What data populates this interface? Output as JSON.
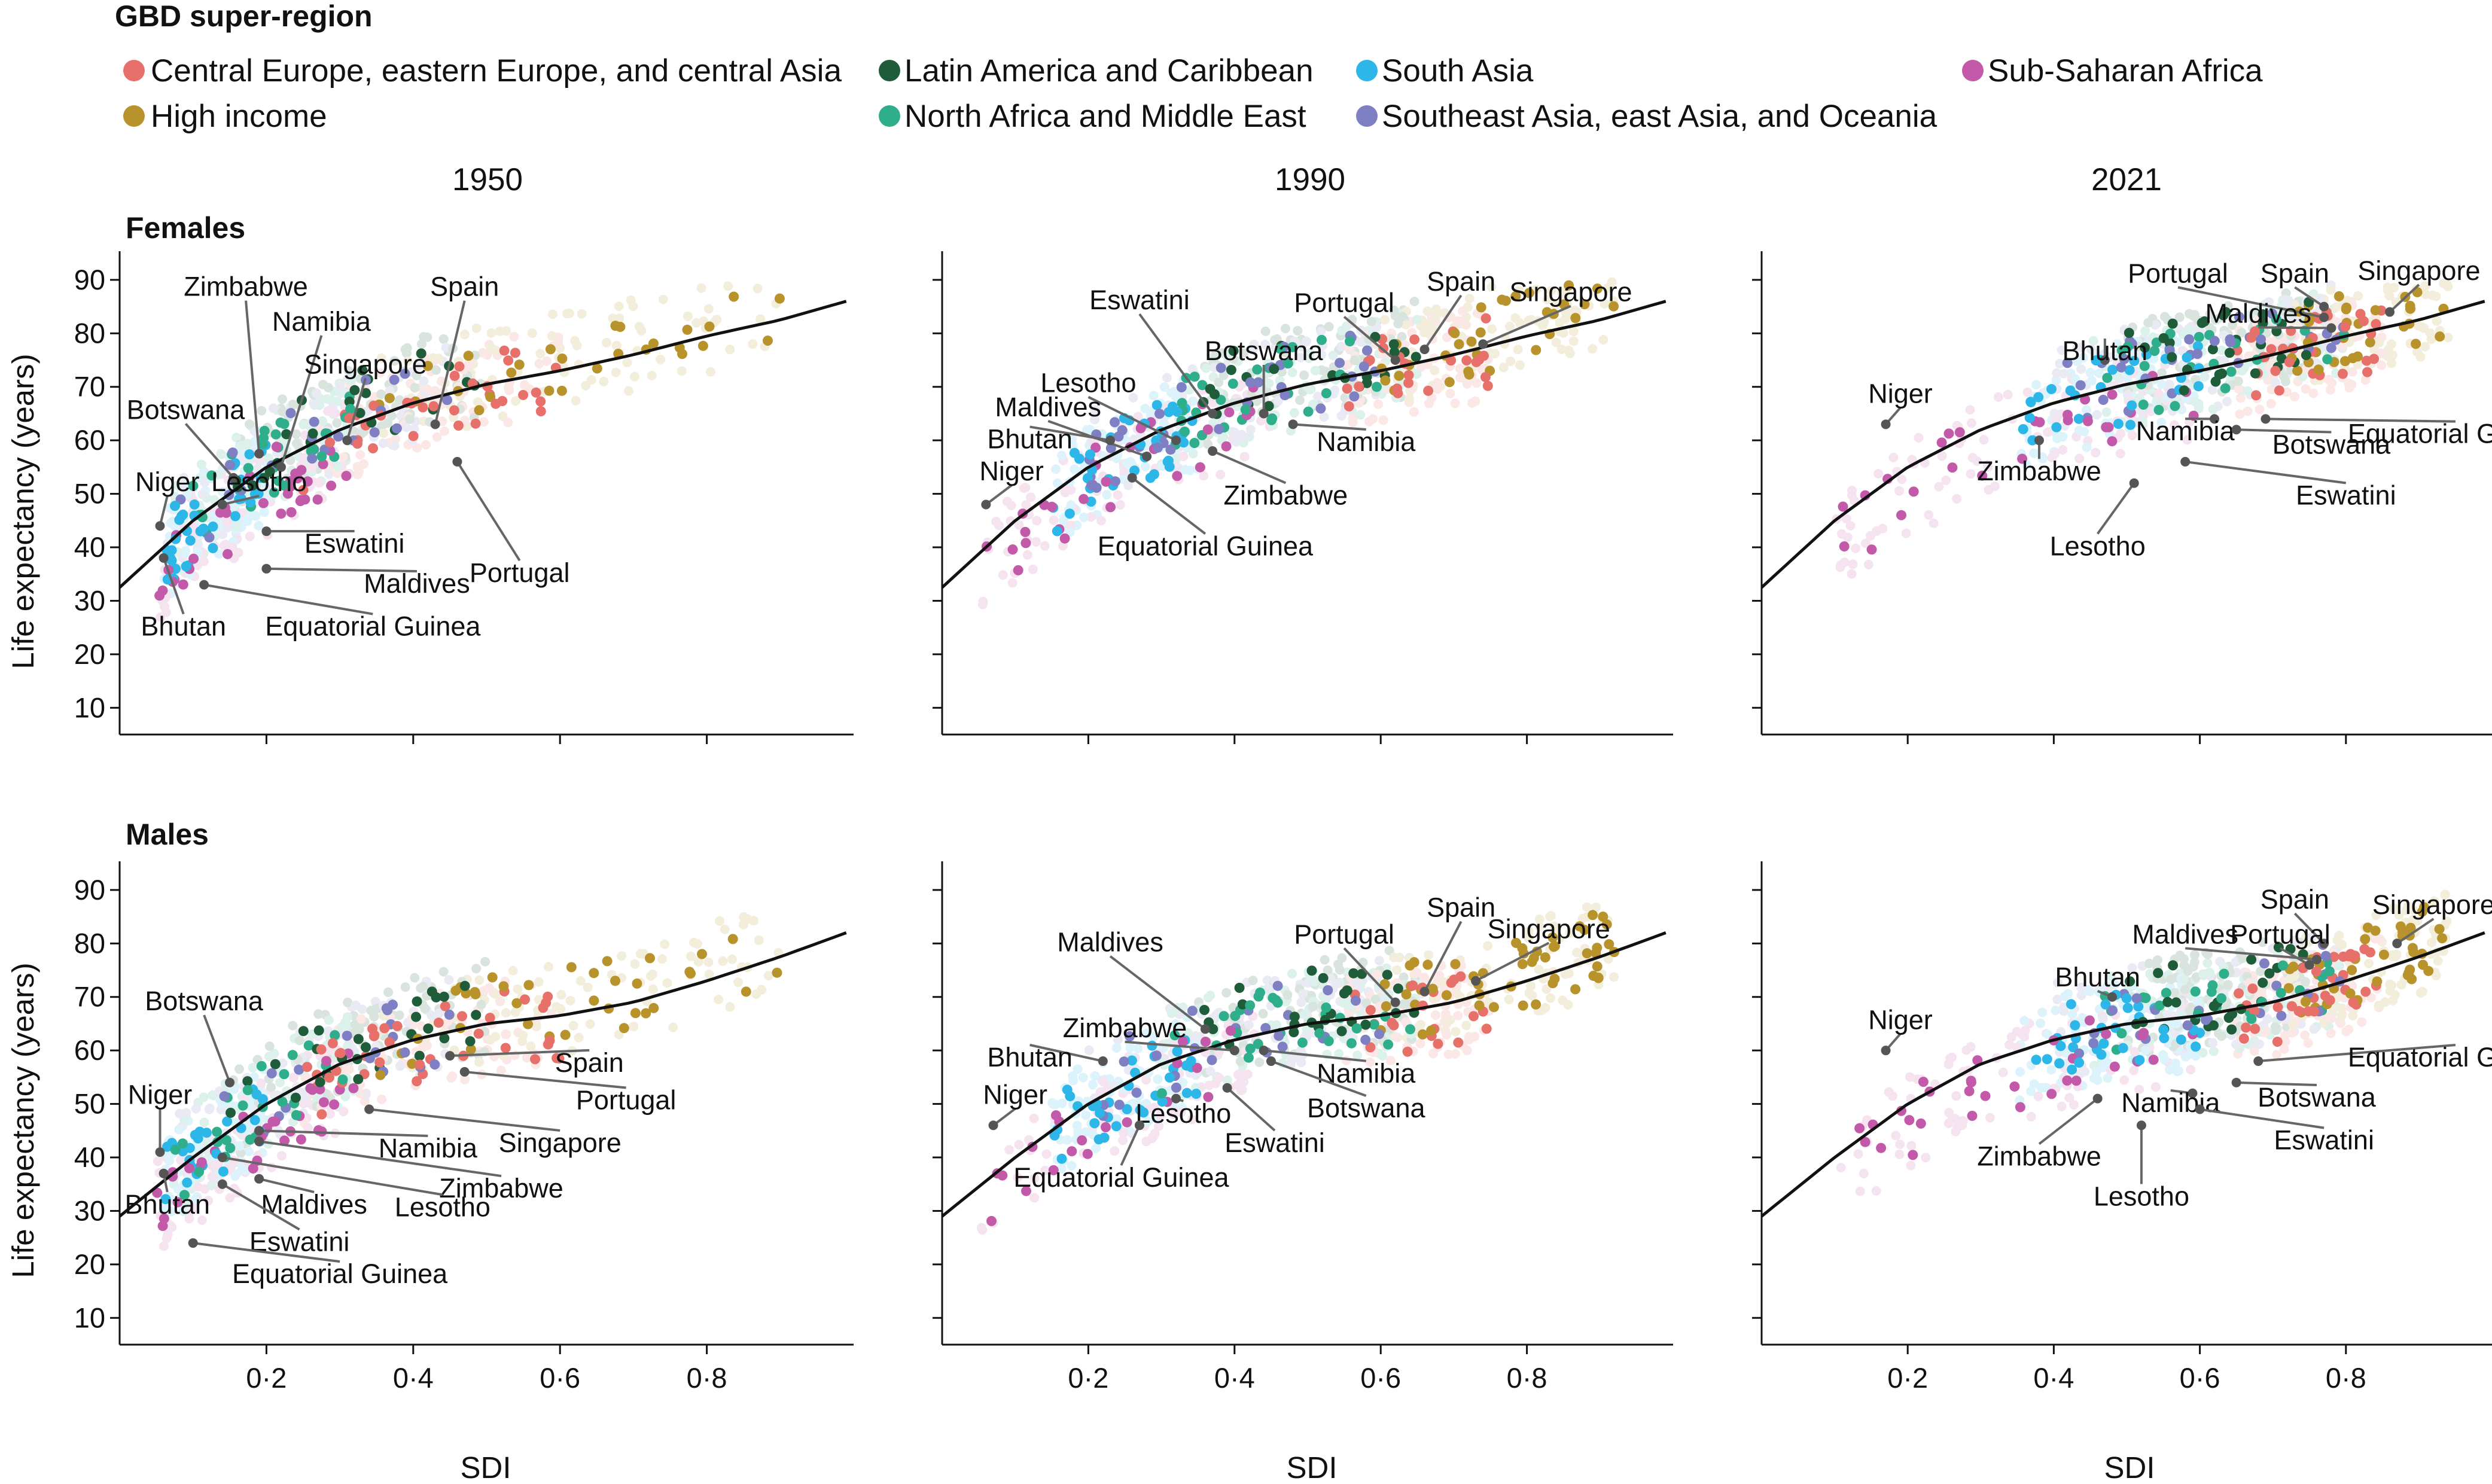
{
  "legend": {
    "title": "GBD super-region",
    "entries": [
      {
        "key": "ceeca",
        "label": "Central Europe, eastern Europe, and central Asia",
        "color": "#e8706a"
      },
      {
        "key": "lac",
        "label": "Latin America and Caribbean",
        "color": "#1f5c3a"
      },
      {
        "key": "sa",
        "label": "South Asia",
        "color": "#2db7e8"
      },
      {
        "key": "ssa",
        "label": "Sub-Saharan Africa",
        "color": "#c35aa9"
      },
      {
        "key": "hi",
        "label": "High income",
        "color": "#b8922a"
      },
      {
        "key": "name",
        "label": "North Africa and Middle East",
        "color": "#2fae8c"
      },
      {
        "key": "seao",
        "label": "Southeast Asia, east Asia, and Oceania",
        "color": "#7f7fc4"
      }
    ]
  },
  "years": [
    "1950",
    "1990",
    "2021"
  ],
  "rows": [
    "Females",
    "Males"
  ],
  "axes": {
    "ylabel": "Life expectancy (years)",
    "xlabel": "SDI"
  },
  "chart_data": {
    "type": "scatter",
    "xlim": [
      0,
      1
    ],
    "ylim": [
      5,
      92
    ],
    "x_ticks": [
      0.2,
      0.4,
      0.6,
      0.8
    ],
    "x_tick_labels": [
      "0·2",
      "0·4",
      "0·6",
      "0·8"
    ],
    "y_ticks": [
      10,
      20,
      30,
      40,
      50,
      60,
      70,
      80,
      90
    ],
    "panels": [
      {
        "id": "f1950",
        "sex": "Females",
        "year": "1950",
        "curve": [
          [
            0,
            32.5
          ],
          [
            0.1,
            45
          ],
          [
            0.2,
            55
          ],
          [
            0.3,
            62
          ],
          [
            0.4,
            67
          ],
          [
            0.5,
            70.5
          ],
          [
            0.6,
            73
          ],
          [
            0.7,
            76
          ],
          [
            0.8,
            79.5
          ],
          [
            0.9,
            82.5
          ],
          [
            0.99,
            86
          ]
        ],
        "labels": [
          {
            "text": "Zimbabwe",
            "x": 0.19,
            "y": 57.5,
            "tx": 0.172,
            "ty": 87
          },
          {
            "text": "Namibia",
            "x": 0.22,
            "y": 55,
            "tx": 0.275,
            "ty": 80.5
          },
          {
            "text": "Singapore",
            "x": 0.31,
            "y": 60,
            "tx": 0.335,
            "ty": 72.5
          },
          {
            "text": "Spain",
            "x": 0.43,
            "y": 63,
            "tx": 0.47,
            "ty": 87
          },
          {
            "text": "Botswana",
            "x": 0.155,
            "y": 53,
            "tx": 0.09,
            "ty": 64
          },
          {
            "text": "Niger",
            "x": 0.055,
            "y": 44,
            "tx": 0.065,
            "ty": 50.5
          },
          {
            "text": "Lesotho",
            "x": 0.14,
            "y": 48,
            "tx": 0.19,
            "ty": 50.5
          },
          {
            "text": "Portugal",
            "x": 0.46,
            "y": 56,
            "tx": 0.545,
            "ty": 33.5
          },
          {
            "text": "Eswatini",
            "x": 0.2,
            "y": 43,
            "tx": 0.32,
            "ty": 39
          },
          {
            "text": "Maldives",
            "x": 0.2,
            "y": 36,
            "tx": 0.405,
            "ty": 31.5
          },
          {
            "text": "Equatorial Guinea",
            "x": 0.115,
            "y": 33,
            "tx": 0.345,
            "ty": 23.5
          },
          {
            "text": "Bhutan",
            "x": 0.06,
            "y": 38,
            "tx": 0.087,
            "ty": 23.5
          }
        ]
      },
      {
        "id": "f1990",
        "sex": "Females",
        "year": "1990",
        "curve": [
          [
            0,
            32.5
          ],
          [
            0.1,
            45
          ],
          [
            0.2,
            55
          ],
          [
            0.3,
            62
          ],
          [
            0.4,
            67
          ],
          [
            0.5,
            70.5
          ],
          [
            0.6,
            73
          ],
          [
            0.7,
            76
          ],
          [
            0.8,
            79.5
          ],
          [
            0.9,
            82.5
          ],
          [
            0.99,
            86
          ]
        ],
        "labels": [
          {
            "text": "Eswatini",
            "x": 0.37,
            "y": 65,
            "tx": 0.27,
            "ty": 84.5
          },
          {
            "text": "Portugal",
            "x": 0.62,
            "y": 75,
            "tx": 0.55,
            "ty": 84
          },
          {
            "text": "Spain",
            "x": 0.66,
            "y": 77,
            "tx": 0.71,
            "ty": 88
          },
          {
            "text": "Singapore",
            "x": 0.74,
            "y": 78,
            "tx": 0.86,
            "ty": 86
          },
          {
            "text": "Botswana",
            "x": 0.44,
            "y": 65,
            "tx": 0.44,
            "ty": 75
          },
          {
            "text": "Lesotho",
            "x": 0.32,
            "y": 60,
            "tx": 0.2,
            "ty": 69
          },
          {
            "text": "Maldives",
            "x": 0.28,
            "y": 57,
            "tx": 0.145,
            "ty": 64.5
          },
          {
            "text": "Bhutan",
            "x": 0.23,
            "y": 60,
            "tx": 0.12,
            "ty": 58.5
          },
          {
            "text": "Niger",
            "x": 0.06,
            "y": 48,
            "tx": 0.095,
            "ty": 52.5
          },
          {
            "text": "Namibia",
            "x": 0.48,
            "y": 63,
            "tx": 0.58,
            "ty": 58
          },
          {
            "text": "Zimbabwe",
            "x": 0.37,
            "y": 58,
            "tx": 0.47,
            "ty": 48
          },
          {
            "text": "Equatorial Guinea",
            "x": 0.26,
            "y": 53,
            "tx": 0.36,
            "ty": 38.5
          }
        ]
      },
      {
        "id": "f2021",
        "sex": "Females",
        "year": "2021",
        "curve": [
          [
            0,
            32.5
          ],
          [
            0.1,
            45
          ],
          [
            0.2,
            55
          ],
          [
            0.3,
            62
          ],
          [
            0.4,
            67
          ],
          [
            0.5,
            70.5
          ],
          [
            0.6,
            73
          ],
          [
            0.7,
            76
          ],
          [
            0.8,
            79.5
          ],
          [
            0.9,
            82.5
          ],
          [
            0.99,
            86
          ]
        ],
        "labels": [
          {
            "text": "Portugal",
            "x": 0.77,
            "y": 83,
            "tx": 0.57,
            "ty": 89.5
          },
          {
            "text": "Spain",
            "x": 0.77,
            "y": 85,
            "tx": 0.73,
            "ty": 89.5
          },
          {
            "text": "Singapore",
            "x": 0.86,
            "y": 84,
            "tx": 0.9,
            "ty": 90
          },
          {
            "text": "Maldives",
            "x": 0.78,
            "y": 81,
            "tx": 0.68,
            "ty": 82
          },
          {
            "text": "Bhutan",
            "x": 0.47,
            "y": 75,
            "tx": 0.47,
            "ty": 75
          },
          {
            "text": "Niger",
            "x": 0.17,
            "y": 63,
            "tx": 0.19,
            "ty": 67
          },
          {
            "text": "Namibia",
            "x": 0.62,
            "y": 64,
            "tx": 0.58,
            "ty": 60
          },
          {
            "text": "Equatorial Guinea",
            "x": 0.69,
            "y": 64,
            "tx": 0.95,
            "ty": 59.5
          },
          {
            "text": "Botswana",
            "x": 0.65,
            "y": 62,
            "tx": 0.78,
            "ty": 57.5
          },
          {
            "text": "Zimbabwe",
            "x": 0.38,
            "y": 60,
            "tx": 0.38,
            "ty": 52.5
          },
          {
            "text": "Eswatini",
            "x": 0.58,
            "y": 56,
            "tx": 0.8,
            "ty": 48
          },
          {
            "text": "Lesotho",
            "x": 0.51,
            "y": 52,
            "tx": 0.46,
            "ty": 38.5
          }
        ]
      },
      {
        "id": "m1950",
        "sex": "Males",
        "year": "1950",
        "curve": [
          [
            0,
            29
          ],
          [
            0.1,
            40
          ],
          [
            0.2,
            50
          ],
          [
            0.3,
            57.5
          ],
          [
            0.4,
            62
          ],
          [
            0.5,
            65
          ],
          [
            0.6,
            66.5
          ],
          [
            0.7,
            69
          ],
          [
            0.8,
            73
          ],
          [
            0.9,
            77.5
          ],
          [
            0.99,
            82
          ]
        ],
        "labels": [
          {
            "text": "Botswana",
            "x": 0.15,
            "y": 54,
            "tx": 0.115,
            "ty": 67.5
          },
          {
            "text": "Niger",
            "x": 0.055,
            "y": 41,
            "tx": 0.055,
            "ty": 50
          },
          {
            "text": "Spain",
            "x": 0.45,
            "y": 59,
            "tx": 0.64,
            "ty": 56
          },
          {
            "text": "Portugal",
            "x": 0.47,
            "y": 56,
            "tx": 0.69,
            "ty": 49
          },
          {
            "text": "Singapore",
            "x": 0.34,
            "y": 49,
            "tx": 0.6,
            "ty": 41
          },
          {
            "text": "Namibia",
            "x": 0.19,
            "y": 45,
            "tx": 0.42,
            "ty": 40
          },
          {
            "text": "Zimbabwe",
            "x": 0.19,
            "y": 43,
            "tx": 0.52,
            "ty": 32.5
          },
          {
            "text": "Maldives",
            "x": 0.19,
            "y": 36,
            "tx": 0.265,
            "ty": 29.5
          },
          {
            "text": "Lesotho",
            "x": 0.14,
            "y": 40,
            "tx": 0.44,
            "ty": 29
          },
          {
            "text": "Bhutan",
            "x": 0.06,
            "y": 37,
            "tx": 0.065,
            "ty": 29.5
          },
          {
            "text": "Eswatini",
            "x": 0.14,
            "y": 35,
            "tx": 0.245,
            "ty": 22.5
          },
          {
            "text": "Equatorial Guinea",
            "x": 0.1,
            "y": 24,
            "tx": 0.3,
            "ty": 16.5
          }
        ]
      },
      {
        "id": "m1990",
        "sex": "Males",
        "year": "1990",
        "curve": [
          [
            0,
            29
          ],
          [
            0.1,
            40
          ],
          [
            0.2,
            50
          ],
          [
            0.3,
            57.5
          ],
          [
            0.4,
            62
          ],
          [
            0.5,
            65
          ],
          [
            0.6,
            66.5
          ],
          [
            0.7,
            69
          ],
          [
            0.8,
            73
          ],
          [
            0.9,
            77.5
          ],
          [
            0.99,
            82
          ]
        ],
        "labels": [
          {
            "text": "Maldives",
            "x": 0.36,
            "y": 64,
            "tx": 0.23,
            "ty": 78.5
          },
          {
            "text": "Portugal",
            "x": 0.62,
            "y": 69,
            "tx": 0.55,
            "ty": 80
          },
          {
            "text": "Spain",
            "x": 0.66,
            "y": 71,
            "tx": 0.71,
            "ty": 85
          },
          {
            "text": "Singapore",
            "x": 0.73,
            "y": 73,
            "tx": 0.83,
            "ty": 81
          },
          {
            "text": "Zimbabwe",
            "x": 0.4,
            "y": 60,
            "tx": 0.25,
            "ty": 62.5
          },
          {
            "text": "Bhutan",
            "x": 0.22,
            "y": 58,
            "tx": 0.12,
            "ty": 57
          },
          {
            "text": "Niger",
            "x": 0.07,
            "y": 46,
            "tx": 0.1,
            "ty": 50
          },
          {
            "text": "Namibia",
            "x": 0.44,
            "y": 60,
            "tx": 0.58,
            "ty": 54
          },
          {
            "text": "Botswana",
            "x": 0.45,
            "y": 58,
            "tx": 0.58,
            "ty": 47.5
          },
          {
            "text": "Lesotho",
            "x": 0.32,
            "y": 51,
            "tx": 0.33,
            "ty": 46.5
          },
          {
            "text": "Eswatini",
            "x": 0.39,
            "y": 53,
            "tx": 0.455,
            "ty": 41
          },
          {
            "text": "Equatorial Guinea",
            "x": 0.27,
            "y": 46,
            "tx": 0.245,
            "ty": 34.5
          }
        ]
      },
      {
        "id": "m2021",
        "sex": "Males",
        "year": "2021",
        "curve": [
          [
            0,
            29
          ],
          [
            0.1,
            40
          ],
          [
            0.2,
            50
          ],
          [
            0.3,
            57.5
          ],
          [
            0.4,
            62
          ],
          [
            0.5,
            65
          ],
          [
            0.6,
            66.5
          ],
          [
            0.7,
            69
          ],
          [
            0.8,
            73
          ],
          [
            0.9,
            77.5
          ],
          [
            0.99,
            82
          ]
        ],
        "labels": [
          {
            "text": "Spain",
            "x": 0.77,
            "y": 80,
            "tx": 0.73,
            "ty": 86.5
          },
          {
            "text": "Singapore",
            "x": 0.87,
            "y": 80,
            "tx": 0.92,
            "ty": 85.5
          },
          {
            "text": "Maldives",
            "x": 0.76,
            "y": 77,
            "tx": 0.58,
            "ty": 80
          },
          {
            "text": "Portugal",
            "x": 0.75,
            "y": 76,
            "tx": 0.71,
            "ty": 80
          },
          {
            "text": "Bhutan",
            "x": 0.48,
            "y": 70,
            "tx": 0.46,
            "ty": 72
          },
          {
            "text": "Niger",
            "x": 0.17,
            "y": 60,
            "tx": 0.19,
            "ty": 64
          },
          {
            "text": "Equatorial Guinea",
            "x": 0.68,
            "y": 58,
            "tx": 0.95,
            "ty": 57
          },
          {
            "text": "Botswana",
            "x": 0.65,
            "y": 54,
            "tx": 0.76,
            "ty": 49.5
          },
          {
            "text": "Namibia",
            "x": 0.59,
            "y": 52,
            "tx": 0.56,
            "ty": 48.5
          },
          {
            "text": "Eswatini",
            "x": 0.6,
            "y": 49,
            "tx": 0.77,
            "ty": 41.5
          },
          {
            "text": "Zimbabwe",
            "x": 0.46,
            "y": 51,
            "tx": 0.38,
            "ty": 38.5
          },
          {
            "text": "Lesotho",
            "x": 0.52,
            "y": 46,
            "tx": 0.52,
            "ty": 31
          }
        ]
      }
    ]
  }
}
